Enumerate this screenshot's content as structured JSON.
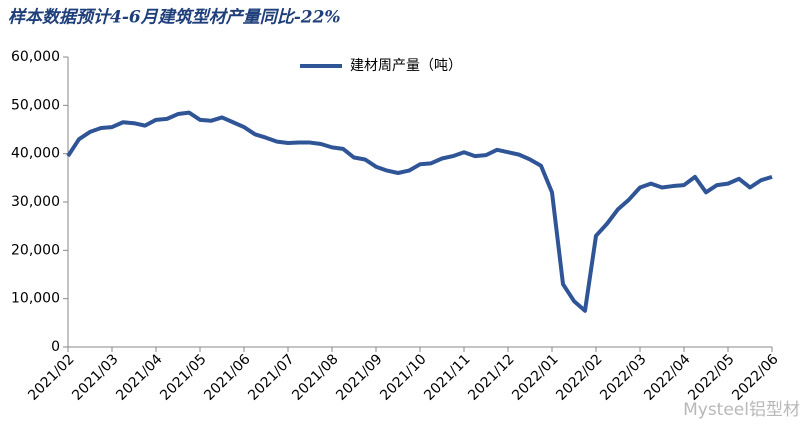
{
  "chart_data": {
    "type": "line",
    "title": "样本数据预计4-6月建筑型材产量同比-22%",
    "watermark": "Mysteel铝型材",
    "categories": [
      "2021/02",
      null,
      null,
      null,
      "2021/03",
      null,
      null,
      null,
      "2021/04",
      null,
      null,
      null,
      "2021/05",
      null,
      null,
      null,
      "2021/06",
      null,
      null,
      null,
      "2021/07",
      null,
      null,
      null,
      "2021/08",
      null,
      null,
      null,
      "2021/09",
      null,
      null,
      null,
      "2021/10",
      null,
      null,
      null,
      "2021/11",
      null,
      null,
      null,
      "2021/12",
      null,
      null,
      null,
      "2022/01",
      null,
      null,
      null,
      "2022/02",
      null,
      null,
      null,
      "2022/03",
      null,
      null,
      null,
      "2022/04",
      null,
      null,
      null,
      "2022/05",
      null,
      null,
      null,
      "2022/06"
    ],
    "series": [
      {
        "name": "建材周产量（吨）",
        "color": "#2f5597",
        "values": [
          39500,
          43000,
          44500,
          45300,
          45500,
          46500,
          46300,
          45800,
          47000,
          47200,
          48200,
          48500,
          47000,
          46800,
          47500,
          46500,
          45500,
          44000,
          43300,
          42500,
          42200,
          42300,
          42300,
          42000,
          41300,
          41000,
          39200,
          38800,
          37300,
          36500,
          36000,
          36500,
          37800,
          38000,
          39000,
          39500,
          40300,
          39500,
          39700,
          40800,
          40300,
          39800,
          38800,
          37500,
          32000,
          13000,
          9500,
          7500,
          23000,
          25500,
          28500,
          30500,
          33000,
          33800,
          33000,
          33300,
          33500,
          35200,
          32000,
          33500,
          33800,
          34800,
          33000,
          34500,
          35200
        ]
      }
    ],
    "ylim": [
      0,
      60000
    ],
    "yticks": [
      0,
      {
        "value": 10000,
        "label": "10,000"
      },
      {
        "value": 20000,
        "label": "20,000"
      },
      {
        "value": 30000,
        "label": "30,000"
      },
      {
        "value": 40000,
        "label": "40,000"
      },
      {
        "value": 50000,
        "label": "50,000"
      },
      {
        "value": 60000,
        "label": "60,000"
      }
    ],
    "legend": "top"
  }
}
